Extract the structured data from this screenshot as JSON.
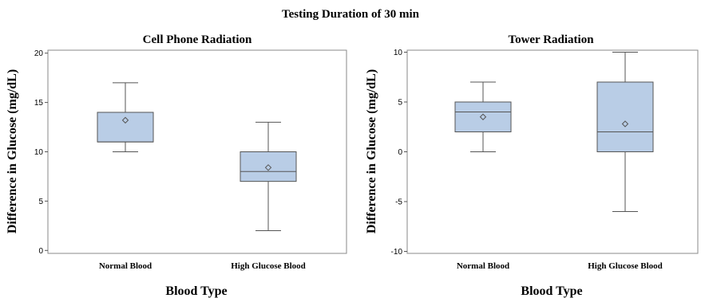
{
  "main_title": "Testing Duration of 30 min",
  "chart_data": [
    {
      "type": "box",
      "title": "Cell Phone Radiation",
      "xlabel": "Blood Type",
      "ylabel": "Difference in Glucose (mg/dL)",
      "ylim": [
        -0.3,
        20.3
      ],
      "yticks": [
        0,
        5,
        10,
        15,
        20
      ],
      "categories": [
        "Normal Blood",
        "High Glucose Blood"
      ],
      "boxes": [
        {
          "category": "Normal Blood",
          "min": 10,
          "q1": 11,
          "median": 11,
          "q3": 14,
          "max": 17,
          "mean": 13.2
        },
        {
          "category": "High Glucose Blood",
          "min": 2,
          "q1": 7,
          "median": 8,
          "q3": 10,
          "max": 13,
          "mean": 8.4
        }
      ],
      "box_color": "#b9cde6",
      "edge_color": "#555555"
    },
    {
      "type": "box",
      "title": "Tower Radiation",
      "xlabel": "Blood Type",
      "ylabel": "Difference in Glucose (mg/dL)",
      "ylim": [
        -10.2,
        10.2
      ],
      "yticks": [
        -10,
        -5,
        0,
        5,
        10
      ],
      "categories": [
        "Normal Blood",
        "High Glucose Blood"
      ],
      "boxes": [
        {
          "category": "Normal Blood",
          "min": 0,
          "q1": 2,
          "median": 4,
          "q3": 5,
          "max": 7,
          "mean": 3.5
        },
        {
          "category": "High Glucose Blood",
          "min": -6,
          "q1": 0,
          "median": 2,
          "q3": 7,
          "max": 10,
          "mean": 2.8
        }
      ],
      "box_color": "#b9cde6",
      "edge_color": "#555555"
    }
  ]
}
